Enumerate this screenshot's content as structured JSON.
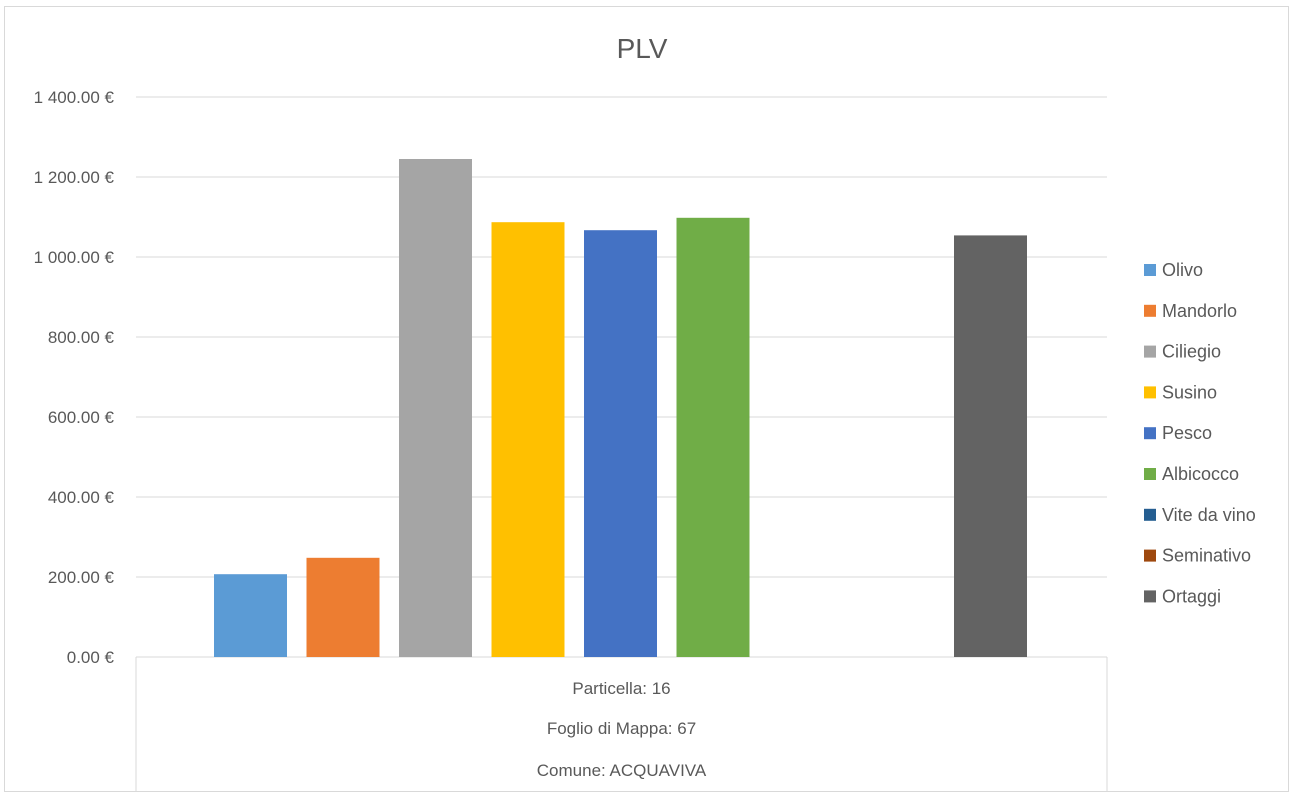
{
  "chart_data": {
    "type": "bar",
    "title": "PLV",
    "xlabel": "",
    "ylabel": "",
    "ylim": [
      0,
      1400
    ],
    "yticks": [
      0,
      200,
      400,
      600,
      800,
      1000,
      1200,
      1400
    ],
    "ytick_labels": [
      "0.00 €",
      "200.00 €",
      "400.00 €",
      "600.00 €",
      "800.00 €",
      "1 000.00 €",
      "1 200.00 €",
      "1 400.00 €"
    ],
    "grid": true,
    "legend_position": "right",
    "category_labels": [
      "Particella: 16",
      "Foglio di Mappa: 67",
      "Comune: ACQUAVIVA"
    ],
    "series": [
      {
        "name": "Olivo",
        "value": 207,
        "color": "#5b9bd5"
      },
      {
        "name": "Mandorlo",
        "value": 248,
        "color": "#ed7d31"
      },
      {
        "name": "Ciliegio",
        "value": 1245,
        "color": "#a5a5a5"
      },
      {
        "name": "Susino",
        "value": 1087,
        "color": "#ffc000"
      },
      {
        "name": "Pesco",
        "value": 1067,
        "color": "#4472c4"
      },
      {
        "name": "Albicocco",
        "value": 1098,
        "color": "#70ad47"
      },
      {
        "name": "Vite da vino",
        "value": 0,
        "color": "#255e91"
      },
      {
        "name": "Seminativo",
        "value": 0,
        "color": "#9e480e"
      },
      {
        "name": "Ortaggi",
        "value": 1054,
        "color": "#636363"
      }
    ]
  }
}
